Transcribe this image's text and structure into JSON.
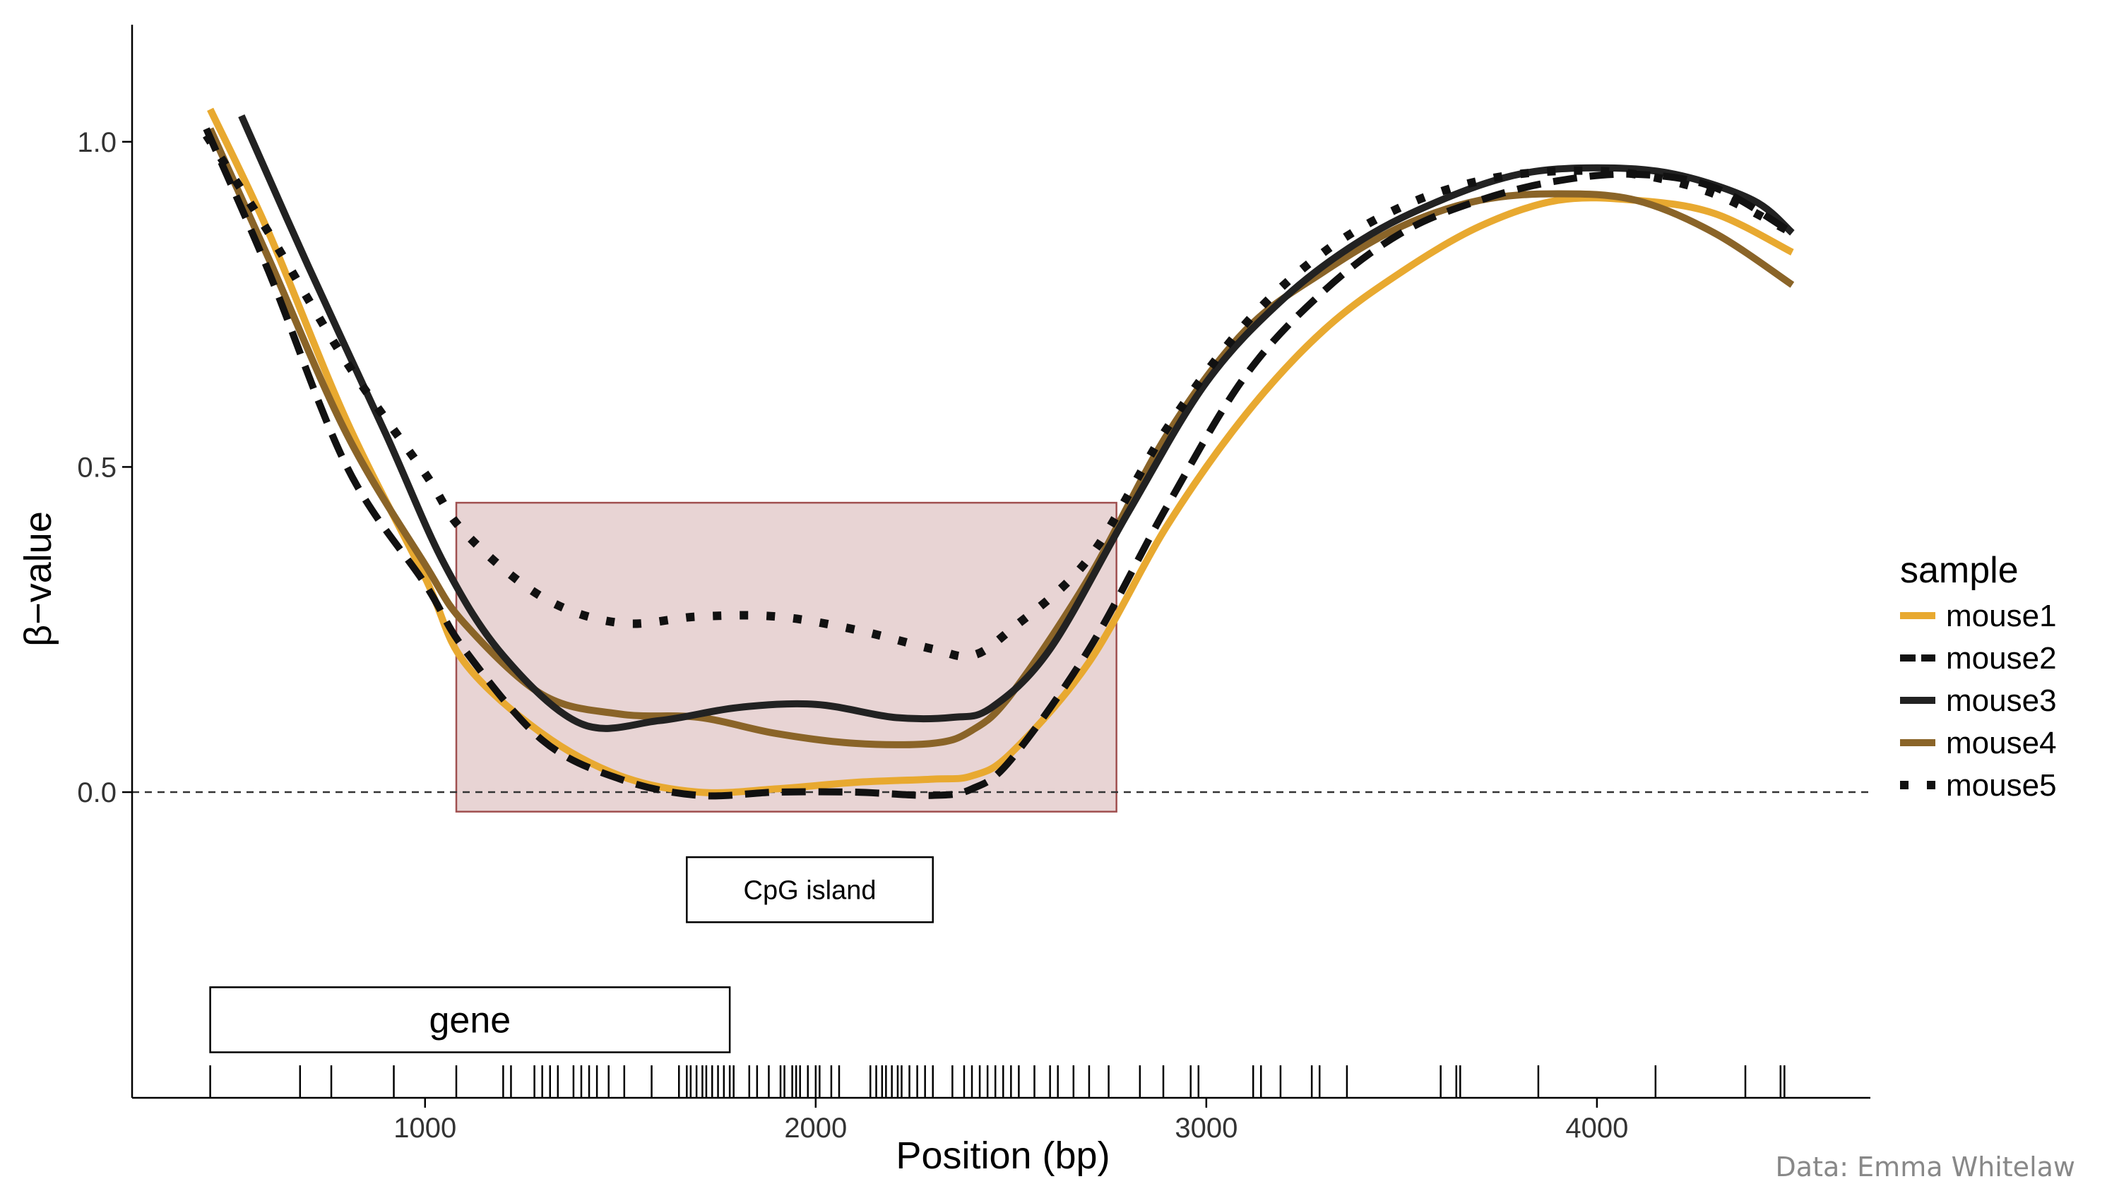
{
  "chart_data": {
    "type": "line",
    "title": "",
    "xlabel": "Position (bp)",
    "ylabel": "β−value",
    "xlim": [
      250,
      4700
    ],
    "ylim": [
      -0.47,
      1.18
    ],
    "xticks": [
      1000,
      2000,
      3000,
      4000
    ],
    "xtick_labels": [
      "1000",
      "2000",
      "3000",
      "4000"
    ],
    "yticks": [
      0.0,
      0.5,
      1.0
    ],
    "ytick_labels": [
      "0.0",
      "0.5",
      "1.0"
    ],
    "reference_line_y": 0.0,
    "grid": false,
    "legend": {
      "title": "sample",
      "position": "right",
      "entries": [
        "mouse1",
        "mouse2",
        "mouse3",
        "mouse4",
        "mouse5"
      ]
    },
    "series": [
      {
        "name": "mouse1",
        "color": "#E8A930",
        "style": "solid",
        "x": [
          450,
          600,
          800,
          1000,
          1100,
          1300,
          1500,
          1700,
          1900,
          2100,
          2300,
          2400,
          2500,
          2700,
          2900,
          3100,
          3300,
          3500,
          3700,
          3900,
          4100,
          4300,
          4500
        ],
        "y": [
          1.05,
          0.86,
          0.57,
          0.33,
          0.2,
          0.09,
          0.025,
          0.0,
          0.005,
          0.015,
          0.02,
          0.025,
          0.06,
          0.2,
          0.41,
          0.58,
          0.71,
          0.8,
          0.87,
          0.91,
          0.91,
          0.89,
          0.83
        ]
      },
      {
        "name": "mouse2",
        "color": "#111111",
        "style": "dashed",
        "x": [
          440,
          600,
          800,
          1000,
          1100,
          1300,
          1500,
          1700,
          1900,
          2100,
          2300,
          2400,
          2500,
          2700,
          2900,
          3100,
          3300,
          3500,
          3700,
          3900,
          4100,
          4300,
          4500
        ],
        "y": [
          1.02,
          0.8,
          0.5,
          0.32,
          0.22,
          0.08,
          0.02,
          -0.005,
          0.0,
          0.0,
          -0.005,
          0.005,
          0.05,
          0.22,
          0.44,
          0.64,
          0.77,
          0.86,
          0.91,
          0.94,
          0.95,
          0.93,
          0.86
        ]
      },
      {
        "name": "mouse3",
        "color": "#222222",
        "style": "solid",
        "x": [
          530,
          700,
          900,
          1050,
          1200,
          1400,
          1600,
          1800,
          2000,
          2200,
          2350,
          2450,
          2600,
          2800,
          3000,
          3200,
          3400,
          3600,
          3800,
          4000,
          4200,
          4400,
          4500
        ],
        "y": [
          1.04,
          0.81,
          0.55,
          0.35,
          0.21,
          0.105,
          0.11,
          0.13,
          0.135,
          0.115,
          0.115,
          0.13,
          0.22,
          0.43,
          0.63,
          0.76,
          0.85,
          0.91,
          0.95,
          0.96,
          0.95,
          0.91,
          0.86
        ]
      },
      {
        "name": "mouse4",
        "color": "#8A6428",
        "style": "solid",
        "x": [
          450,
          600,
          800,
          1000,
          1100,
          1300,
          1500,
          1700,
          1900,
          2100,
          2300,
          2400,
          2500,
          2700,
          2900,
          3100,
          3300,
          3500,
          3700,
          3900,
          4100,
          4300,
          4500
        ],
        "y": [
          1.02,
          0.82,
          0.55,
          0.35,
          0.26,
          0.15,
          0.12,
          0.115,
          0.09,
          0.075,
          0.075,
          0.095,
          0.15,
          0.33,
          0.55,
          0.71,
          0.8,
          0.87,
          0.91,
          0.92,
          0.91,
          0.86,
          0.78
        ]
      },
      {
        "name": "mouse5",
        "color": "#111111",
        "style": "dotted",
        "x": [
          440,
          600,
          800,
          1000,
          1100,
          1300,
          1500,
          1700,
          1900,
          2100,
          2300,
          2400,
          2500,
          2700,
          2900,
          3100,
          3300,
          3500,
          3700,
          3900,
          4100,
          4300,
          4500
        ],
        "y": [
          1.01,
          0.86,
          0.66,
          0.49,
          0.4,
          0.3,
          0.26,
          0.27,
          0.27,
          0.25,
          0.22,
          0.21,
          0.25,
          0.36,
          0.56,
          0.72,
          0.83,
          0.9,
          0.94,
          0.955,
          0.95,
          0.92,
          0.86
        ]
      }
    ],
    "annotations": [
      {
        "type": "shaded_region",
        "label": "",
        "x": [
          1080,
          2770
        ],
        "y": [
          -0.03,
          0.445
        ],
        "fill": "#D6B0B0",
        "stroke": "#A05050"
      },
      {
        "type": "label_box",
        "label": "CpG island",
        "x": [
          1670,
          2300
        ],
        "y": [
          -0.1,
          -0.2
        ]
      },
      {
        "type": "label_box",
        "label": "gene",
        "x": [
          450,
          1780
        ],
        "y": [
          -0.3,
          -0.4
        ]
      }
    ],
    "rug_positions": [
      450,
      680,
      760,
      920,
      1080,
      1200,
      1220,
      1280,
      1300,
      1320,
      1340,
      1380,
      1400,
      1420,
      1440,
      1470,
      1510,
      1580,
      1650,
      1670,
      1680,
      1695,
      1710,
      1720,
      1735,
      1750,
      1765,
      1780,
      1790,
      1830,
      1850,
      1880,
      1910,
      1920,
      1940,
      1950,
      1960,
      1980,
      2000,
      2010,
      2040,
      2060,
      2140,
      2155,
      2170,
      2180,
      2195,
      2210,
      2220,
      2240,
      2260,
      2280,
      2300,
      2350,
      2380,
      2400,
      2420,
      2440,
      2460,
      2480,
      2500,
      2520,
      2560,
      2600,
      2620,
      2660,
      2700,
      2750,
      2830,
      2890,
      2960,
      2980,
      3120,
      3140,
      3190,
      3270,
      3290,
      3360,
      3600,
      3640,
      3650,
      3850,
      4150,
      4380,
      4470,
      4480
    ]
  },
  "credit": "Data: Emma Whitelaw"
}
